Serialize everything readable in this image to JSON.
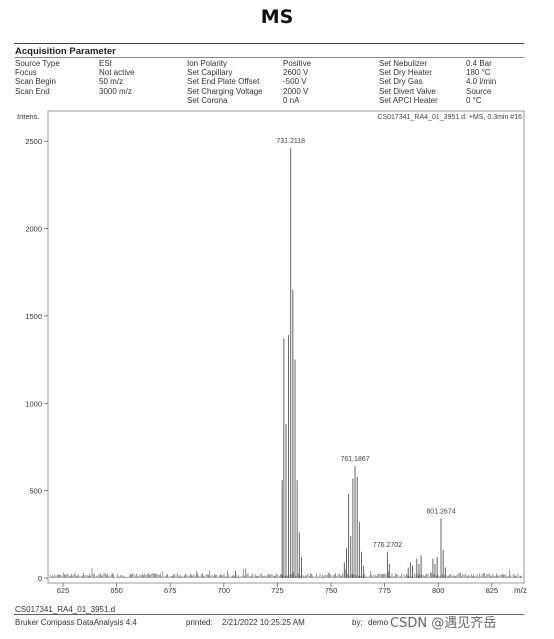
{
  "page_title": "MS",
  "acquisition": {
    "heading": "Acquisition Parameter",
    "col1_labels": [
      "Source Type",
      "Focus",
      "Scan Begin",
      "Scan End"
    ],
    "col1_values": [
      "ESI",
      "Not active",
      "50 m/z",
      "3000 m/z"
    ],
    "col2_labels": [
      "Ion Polarity",
      "Set Capillary",
      "Set End Plate Offset",
      "Set Charging Voltage",
      "Set Corona"
    ],
    "col2_values": [
      "Positive",
      "2600 V",
      "-500 V",
      "2000 V",
      "0 nA"
    ],
    "col3_labels": [
      "Set Nebulizer",
      "Set Dry Heater",
      "Set Dry Gas",
      "Set Divert Valve",
      "Set APCI Heater"
    ],
    "col3_values": [
      "0.4 Bar",
      "180 °C",
      "4.0 l/min",
      "Source",
      "0 °C"
    ]
  },
  "footer": {
    "file": "CS017341_RA4_01_3951.d",
    "software": "Bruker Compass DataAnalysis 4.4",
    "printed_label": "printed:",
    "printed_value": "2/21/2022 10:25:25 AM",
    "by_label": "by:",
    "by_value": "demo",
    "watermark": "CSDN @遇见齐岳"
  },
  "chart_data": {
    "type": "line",
    "ylabel": "Intens.",
    "xlabel": "m/z",
    "trace_label": "CS017341_RA4_01_3951.d: +MS, 0.3min #16",
    "xlim": [
      618,
      840
    ],
    "ylim": [
      0,
      2650
    ],
    "xticks": [
      625,
      650,
      675,
      700,
      725,
      750,
      775,
      800,
      825
    ],
    "yticks": [
      0,
      500,
      1000,
      1500,
      2000,
      2500
    ],
    "peaks": [
      {
        "x": 705.5,
        "y": 40
      },
      {
        "x": 727.2,
        "y": 560
      },
      {
        "x": 728.0,
        "y": 1370
      },
      {
        "x": 729.0,
        "y": 880
      },
      {
        "x": 730.2,
        "y": 1390
      },
      {
        "x": 731.2,
        "y": 2460
      },
      {
        "x": 732.2,
        "y": 1650
      },
      {
        "x": 733.2,
        "y": 1250
      },
      {
        "x": 734.2,
        "y": 560
      },
      {
        "x": 735.2,
        "y": 260
      },
      {
        "x": 736.2,
        "y": 120
      },
      {
        "x": 756.2,
        "y": 90
      },
      {
        "x": 757.2,
        "y": 170
      },
      {
        "x": 758.2,
        "y": 480
      },
      {
        "x": 759.2,
        "y": 240
      },
      {
        "x": 760.2,
        "y": 570
      },
      {
        "x": 761.2,
        "y": 640
      },
      {
        "x": 762.2,
        "y": 580
      },
      {
        "x": 763.2,
        "y": 320
      },
      {
        "x": 764.2,
        "y": 150
      },
      {
        "x": 765.2,
        "y": 70
      },
      {
        "x": 776.3,
        "y": 150
      },
      {
        "x": 777.2,
        "y": 80
      },
      {
        "x": 786.0,
        "y": 60
      },
      {
        "x": 787.0,
        "y": 90
      },
      {
        "x": 788.0,
        "y": 70
      },
      {
        "x": 790.0,
        "y": 110
      },
      {
        "x": 791.0,
        "y": 80
      },
      {
        "x": 792.0,
        "y": 130
      },
      {
        "x": 797.5,
        "y": 110
      },
      {
        "x": 798.5,
        "y": 80
      },
      {
        "x": 799.5,
        "y": 120
      },
      {
        "x": 801.3,
        "y": 340
      },
      {
        "x": 802.3,
        "y": 160
      },
      {
        "x": 803.3,
        "y": 60
      }
    ],
    "labels": [
      {
        "x": 731.2,
        "y": 2460,
        "text": "731.2118"
      },
      {
        "x": 761.2,
        "y": 640,
        "text": "761.1867"
      },
      {
        "x": 776.3,
        "y": 150,
        "text": "776.2702"
      },
      {
        "x": 801.3,
        "y": 340,
        "text": "801.2674"
      }
    ]
  }
}
